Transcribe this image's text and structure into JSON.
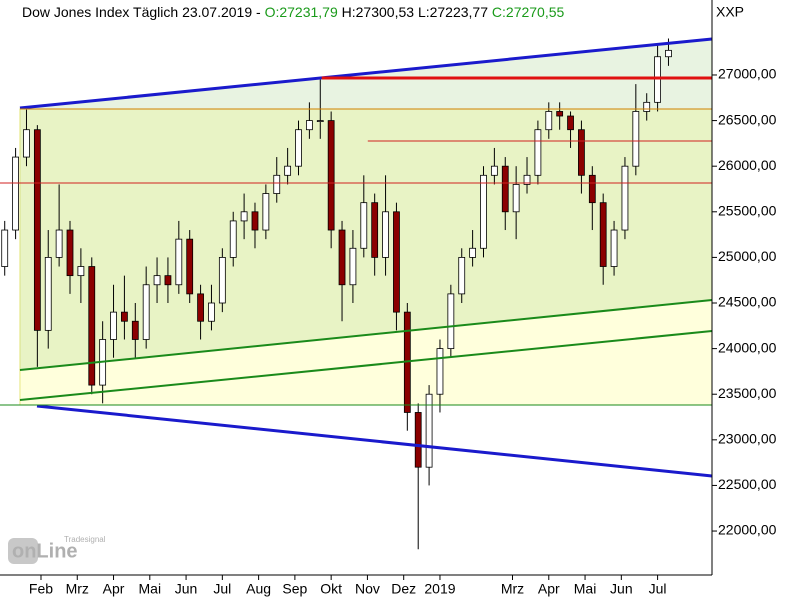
{
  "chart_data": {
    "type": "candlestick",
    "title": "Dow Jones Index Täglich",
    "date": "23.07.2019 -",
    "ohlc_labels": [
      "O:27231,79",
      "H:27300,53",
      "L:27223,77",
      "C:27270,55"
    ],
    "ohlc_label_colors": [
      "#1a9a1a",
      "#000000",
      "#000000",
      "#1a9a1a"
    ],
    "symbol": "XXP",
    "watermark": [
      "onLine",
      "Tradesignal"
    ],
    "up_color": "#ffffff",
    "down_color": "#8b0000",
    "xlim": [
      0.37,
      20
    ],
    "xticks": [
      {
        "value": 1.5,
        "label": "Feb"
      },
      {
        "value": 2.5,
        "label": "Mrz"
      },
      {
        "value": 3.5,
        "label": "Apr"
      },
      {
        "value": 4.5,
        "label": "Mai"
      },
      {
        "value": 5.5,
        "label": "Jun"
      },
      {
        "value": 6.5,
        "label": "Jul"
      },
      {
        "value": 7.5,
        "label": "Aug"
      },
      {
        "value": 8.5,
        "label": "Sep"
      },
      {
        "value": 9.5,
        "label": "Okt"
      },
      {
        "value": 10.5,
        "label": "Nov"
      },
      {
        "value": 11.5,
        "label": "Dez"
      },
      {
        "value": 12.5,
        "label": "2019"
      },
      {
        "value": 14.5,
        "label": "Mrz"
      },
      {
        "value": 15.5,
        "label": "Apr"
      },
      {
        "value": 16.5,
        "label": "Mai"
      },
      {
        "value": 17.5,
        "label": "Jun"
      },
      {
        "value": 18.5,
        "label": "Jul"
      }
    ],
    "ylim": [
      21518,
      27822
    ],
    "yticks": [
      {
        "value": 22000,
        "label": "22000,00"
      },
      {
        "value": 22500,
        "label": "22500,00"
      },
      {
        "value": 23000,
        "label": "23000,00"
      },
      {
        "value": 23500,
        "label": "23500,00"
      },
      {
        "value": 24000,
        "label": "24000,00"
      },
      {
        "value": 24500,
        "label": "24500,00"
      },
      {
        "value": 25000,
        "label": "25000,00"
      },
      {
        "value": 25500,
        "label": "25500,00"
      },
      {
        "value": 26000,
        "label": "26000,00"
      },
      {
        "value": 26500,
        "label": "26500,00"
      },
      {
        "value": 27000,
        "label": "27000,00"
      }
    ],
    "x": [
      0.5,
      0.8,
      1.1,
      1.4,
      1.7,
      2.0,
      2.3,
      2.6,
      2.9,
      3.2,
      3.5,
      3.8,
      4.1,
      4.4,
      4.7,
      5.0,
      5.3,
      5.6,
      5.9,
      6.2,
      6.5,
      6.8,
      7.1,
      7.4,
      7.7,
      8.0,
      8.3,
      8.6,
      8.9,
      9.2,
      9.5,
      9.8,
      10.1,
      10.4,
      10.7,
      11.0,
      11.3,
      11.6,
      11.9,
      12.2,
      12.5,
      12.8,
      13.1,
      13.4,
      13.7,
      14.0,
      14.3,
      14.6,
      14.9,
      15.2,
      15.5,
      15.8,
      16.1,
      16.4,
      16.7,
      17.0,
      17.3,
      17.6,
      17.9,
      18.2,
      18.5,
      18.8
    ],
    "open": [
      24900,
      25300,
      26100,
      26400,
      24200,
      25000,
      25300,
      24800,
      24900,
      23600,
      24100,
      24400,
      24300,
      24100,
      24700,
      24800,
      24700,
      25200,
      24600,
      24300,
      24500,
      25000,
      25400,
      25500,
      25300,
      25700,
      25900,
      26000,
      26400,
      26500,
      26500,
      25300,
      24700,
      25100,
      25600,
      25000,
      25500,
      24400,
      23300,
      22700,
      23500,
      24000,
      24600,
      25000,
      25100,
      25900,
      26000,
      25500,
      25800,
      25900,
      26400,
      26600,
      26550,
      26400,
      25900,
      25600,
      24900,
      25300,
      26000,
      26600,
      26700,
      27200
    ],
    "high": [
      25400,
      26200,
      26620,
      26450,
      25300,
      25800,
      25400,
      25100,
      25000,
      24300,
      24700,
      24800,
      24500,
      24900,
      25000,
      25000,
      25400,
      25300,
      24700,
      24700,
      25100,
      25500,
      25700,
      25600,
      25800,
      26100,
      26200,
      26500,
      26700,
      26950,
      26600,
      25400,
      25300,
      25900,
      25700,
      25900,
      25600,
      24500,
      23400,
      23600,
      24100,
      24700,
      25100,
      25300,
      26000,
      26200,
      26100,
      26000,
      26100,
      26500,
      26700,
      26700,
      26600,
      26500,
      26000,
      25700,
      25400,
      26100,
      26900,
      26800,
      27350,
      27400
    ],
    "low": [
      24800,
      25200,
      26000,
      23800,
      24000,
      24900,
      24600,
      24500,
      23500,
      23400,
      23900,
      24100,
      23900,
      24000,
      24500,
      24500,
      24600,
      24500,
      24100,
      24200,
      24400,
      24900,
      25200,
      25100,
      25200,
      25600,
      25800,
      25900,
      26300,
      26300,
      25100,
      24300,
      24500,
      25000,
      24800,
      24800,
      24200,
      23100,
      21800,
      22500,
      23300,
      23900,
      24500,
      24900,
      25000,
      25800,
      25300,
      25200,
      25700,
      25800,
      26300,
      26400,
      26200,
      25700,
      25300,
      24700,
      24800,
      25200,
      25900,
      26500,
      26600,
      27100
    ],
    "close": [
      25300,
      26100,
      26400,
      24200,
      25000,
      25300,
      24800,
      24900,
      23600,
      24100,
      24400,
      24300,
      24100,
      24700,
      24800,
      24700,
      25200,
      24600,
      24300,
      24500,
      25000,
      25400,
      25500,
      25300,
      25700,
      25900,
      26000,
      26400,
      26500,
      26500,
      25300,
      24700,
      25100,
      25600,
      25000,
      25500,
      24400,
      23300,
      22700,
      23500,
      24000,
      24600,
      25000,
      25100,
      25900,
      26000,
      25500,
      25800,
      25900,
      26400,
      26600,
      26550,
      26400,
      25900,
      25600,
      24900,
      25300,
      26000,
      26600,
      26700,
      27200,
      27270
    ],
    "lines": [
      {
        "color": "#1a1acc",
        "width": 3,
        "x": [
          0.92,
          20
        ],
        "y": [
          26638,
          27395
        ]
      },
      {
        "color": "#1a1acc",
        "width": 3,
        "x": [
          1.39,
          20
        ],
        "y": [
          23371,
          22603
        ]
      },
      {
        "color": "#1a8a1a",
        "width": 2,
        "x": [
          0.92,
          20
        ],
        "y": [
          23765,
          24533
        ]
      },
      {
        "color": "#1a8a1a",
        "width": 2,
        "x": [
          0.92,
          20
        ],
        "y": [
          23436,
          24193
        ]
      },
      {
        "color": "#e01010",
        "width": 3,
        "x": [
          9.24,
          20
        ],
        "y": [
          26967,
          26967
        ]
      },
      {
        "color": "#d08000",
        "width": 1,
        "x": [
          0.92,
          20
        ],
        "y": [
          26627,
          26627
        ]
      },
      {
        "color": "#d02020",
        "width": 1,
        "x": [
          10.51,
          20
        ],
        "y": [
          26276,
          26276
        ]
      },
      {
        "color": "#d02020",
        "width": 1,
        "x": [
          0.37,
          20
        ],
        "y": [
          25816,
          25816
        ]
      },
      {
        "color": "#1a8a1a",
        "width": 1,
        "x": [
          0.37,
          20
        ],
        "y": [
          23382,
          23382
        ]
      }
    ]
  }
}
